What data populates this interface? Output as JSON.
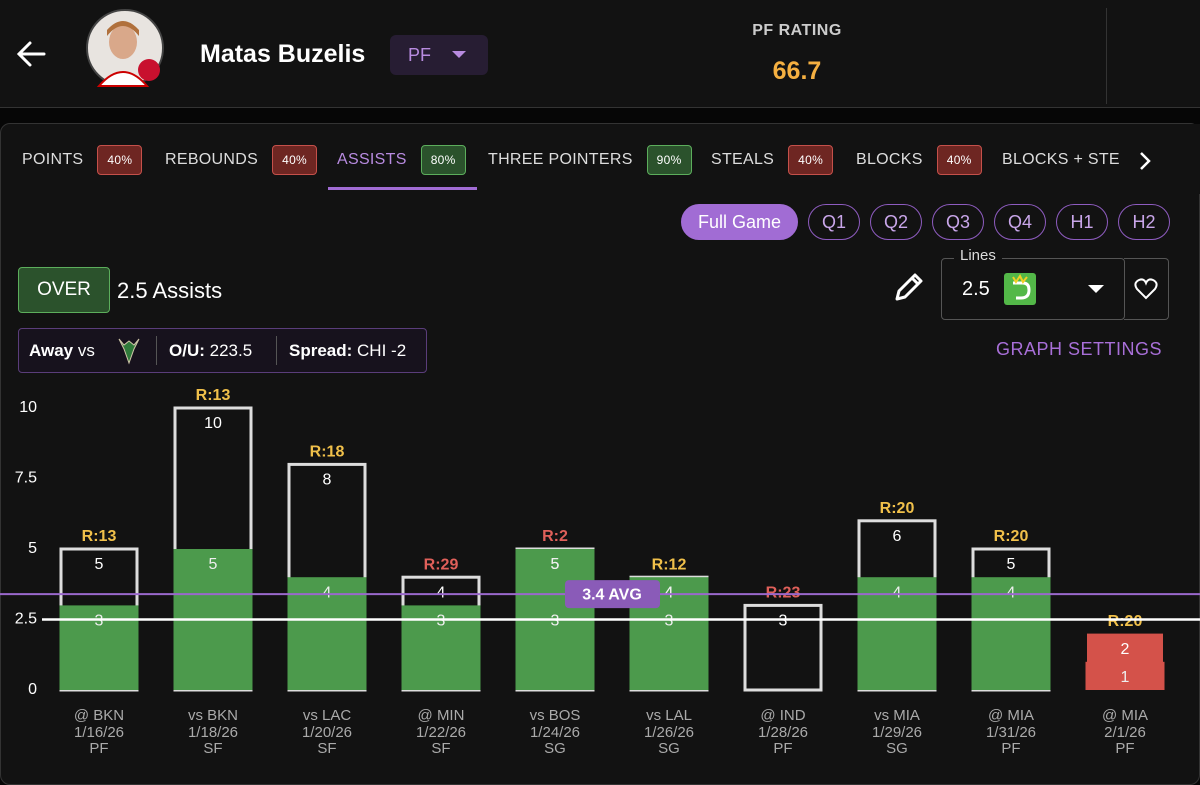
{
  "header": {
    "player_name": "Matas Buzelis",
    "position": "PF",
    "rating_label": "PF RATING",
    "rating": "66.7"
  },
  "tabs": [
    {
      "label": "POINTS",
      "pct": "40%",
      "tone": "bad"
    },
    {
      "label": "REBOUNDS",
      "pct": "40%",
      "tone": "bad"
    },
    {
      "label": "ASSISTS",
      "pct": "80%",
      "tone": "good"
    },
    {
      "label": "THREE POINTERS",
      "pct": "90%",
      "tone": "good"
    },
    {
      "label": "STEALS",
      "pct": "40%",
      "tone": "bad"
    },
    {
      "label": "BLOCKS",
      "pct": "40%",
      "tone": "bad"
    },
    {
      "label": "BLOCKS + STE"
    }
  ],
  "active_tab": 2,
  "periods": [
    "Full Game",
    "Q1",
    "Q2",
    "Q3",
    "Q4",
    "H1",
    "H2"
  ],
  "active_period": 0,
  "prop": {
    "side": "OVER",
    "line_text": "2.5 Assists"
  },
  "lines": {
    "label": "Lines",
    "value": "2.5"
  },
  "game_info": {
    "location": "Away",
    "vs": "vs",
    "ou_label": "O/U:",
    "ou": "223.5",
    "spread_label": "Spread:",
    "spread": "CHI -2"
  },
  "graph_settings": "GRAPH SETTINGS",
  "chart_data": {
    "type": "bar",
    "categories": [
      "@ BKN",
      "vs BKN",
      "vs LAC",
      "@ MIN",
      "vs BOS",
      "vs LAL",
      "@ IND",
      "vs MIA",
      "@ MIA",
      "@ MIA"
    ],
    "dates": [
      "1/16/26",
      "1/18/26",
      "1/20/26",
      "1/22/26",
      "1/24/26",
      "1/26/26",
      "1/28/26",
      "1/29/26",
      "1/31/26",
      "2/1/26"
    ],
    "positions": [
      "PF",
      "SF",
      "SF",
      "SF",
      "SG",
      "SG",
      "PF",
      "SG",
      "PF",
      "PF"
    ],
    "ranks": [
      "R:13",
      "R:13",
      "R:18",
      "R:29",
      "R:2",
      "R:12",
      "R:23",
      "R:20",
      "R:20",
      "R:20"
    ],
    "rank_colors": [
      "#f0c04a",
      "#f0c04a",
      "#f0c04a",
      "#e0605a",
      "#e0605a",
      "#f0c04a",
      "#e0605a",
      "#f0c04a",
      "#f0c04a",
      "#f0c04a"
    ],
    "series": [
      {
        "color": "#dddddd",
        "fills": [
          null,
          null,
          null,
          null,
          null,
          null,
          null,
          null,
          null,
          "#d4524a"
        ],
        "values": [
          5,
          10,
          8,
          4,
          5,
          4,
          3,
          6,
          5,
          2
        ]
      },
      {
        "colors": [
          "#4c9a4c",
          "#4c9a4c",
          "#4c9a4c",
          "#4c9a4c",
          "#4c9a4c",
          "#4c9a4c",
          "#4c9a4c",
          "#4c9a4c",
          "#4c9a4c",
          "#d4524a"
        ],
        "values": [
          3,
          5,
          4,
          3,
          5,
          4,
          0,
          4,
          4,
          1
        ]
      },
      {
        "values": [
          null,
          null,
          null,
          null,
          3,
          3,
          null,
          null,
          null,
          null
        ]
      }
    ],
    "threshold": 2.5,
    "average": {
      "value": 3.4,
      "label": "3.4 AVG"
    },
    "ylim": [
      0,
      10
    ],
    "yticks": [
      0,
      2.5,
      5,
      7.5,
      10
    ]
  }
}
